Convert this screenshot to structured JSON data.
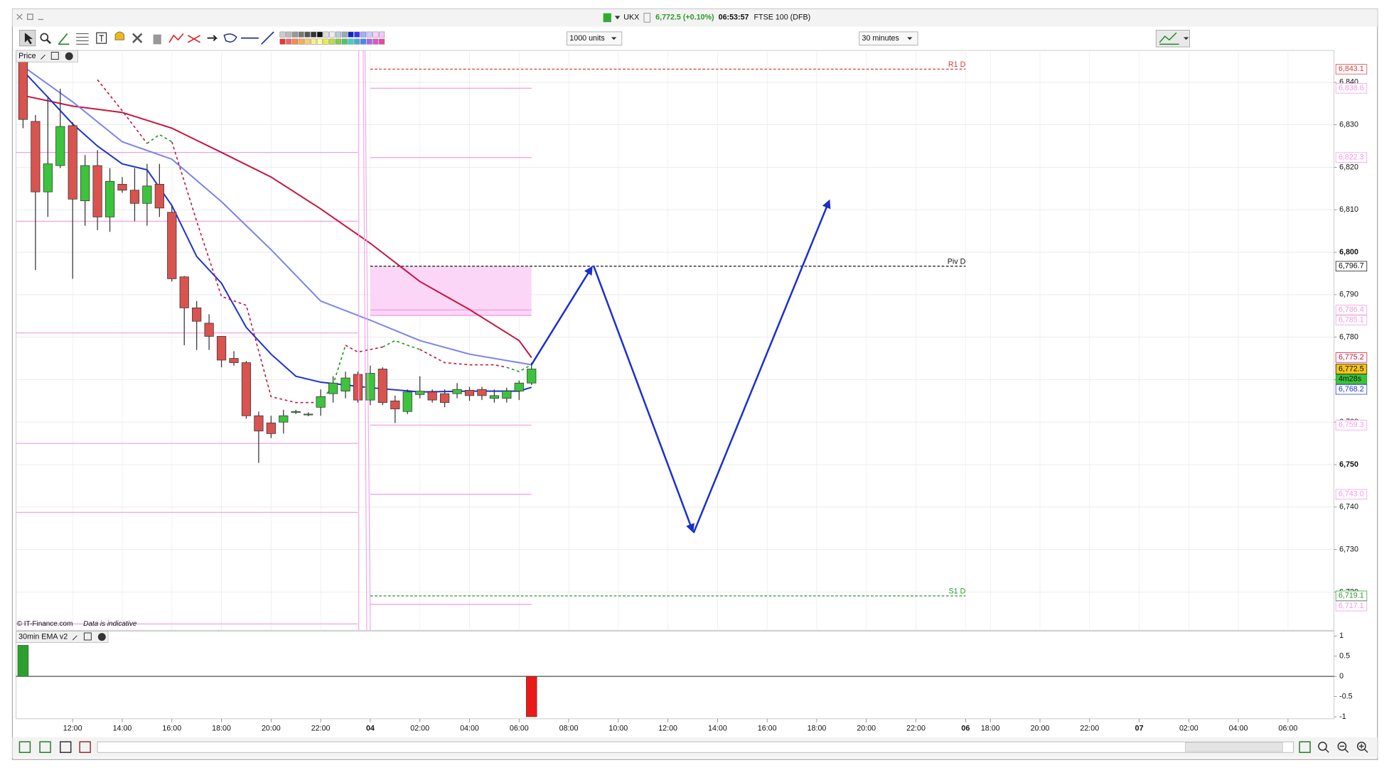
{
  "window": {
    "symbol": "UKX",
    "price": "6,772.5 (+0.10%)",
    "time": "06:53:57",
    "instrument": "FTSE 100 (DFB)"
  },
  "toolbar": {
    "size": "1000 units",
    "interval": "30 minutes"
  },
  "chart_data": [
    {
      "type": "candlestick",
      "panel_label": "Price",
      "watermark": "© IT-Finance.com",
      "disclaimer": "Data is indicative",
      "up_color": "#3cc43c",
      "down_color": "#d9534f",
      "grid": true,
      "x": [
        10,
        10.5,
        11,
        11.5,
        12,
        12.5,
        13,
        13.5,
        14,
        14.5,
        15,
        15.5,
        16,
        16.5,
        17,
        17.5,
        18,
        18.5,
        19,
        19.5,
        20,
        20.5,
        21,
        21.5,
        22,
        22.5,
        23,
        23.5,
        24,
        24.5,
        25,
        25.5,
        26,
        26.5,
        27,
        27.5,
        28,
        28.5,
        29,
        29.5,
        30,
        30.5
      ],
      "open": [
        6844.8,
        6830.8,
        6814.2,
        6820.4,
        6829.8,
        6812.1,
        6820.4,
        6808.3,
        6816,
        6814.6,
        6811.5,
        6816,
        6809.4,
        6794.2,
        6786.9,
        6783.3,
        6780.2,
        6775,
        6774,
        6761.5,
        6759.8,
        6760,
        6762.3,
        6761.7,
        6763.5,
        6766.7,
        6767.3,
        6771.25,
        6765.2,
        6772.5,
        6765,
        6762.5,
        6766.5,
        6767.1,
        6766.7,
        6766.7,
        6767.5,
        6767.7,
        6765.6,
        6765.6,
        6767.3,
        6769.2
      ],
      "high": [
        6846.9,
        6832.3,
        6836.5,
        6838.5,
        6830.6,
        6822.9,
        6824,
        6819.8,
        6817.7,
        6819.8,
        6820.8,
        6820.8,
        6811,
        6794.4,
        6788.5,
        6785.4,
        6780.2,
        6776.7,
        6774.4,
        6762.5,
        6761.5,
        6762.9,
        6762.9,
        6762.3,
        6767.7,
        6770.8,
        6771.9,
        6771.9,
        6773.3,
        6772.9,
        6766.25,
        6767.7,
        6770.8,
        6767.7,
        6767.7,
        6769.2,
        6768.3,
        6768.3,
        6767.7,
        6768.1,
        6769.8,
        6774
      ],
      "low": [
        6829.2,
        6795.8,
        6808.3,
        6819.8,
        6793.75,
        6806.25,
        6805.2,
        6804.8,
        6814,
        6807.3,
        6806.25,
        6808.3,
        6793.1,
        6778.1,
        6777,
        6777,
        6772.9,
        6773.3,
        6760.8,
        6750.4,
        6756.25,
        6757.3,
        6761.9,
        6761.4,
        6761.5,
        6764.6,
        6765.6,
        6764.6,
        6764,
        6764,
        6759.8,
        6761.9,
        6765.6,
        6764.6,
        6763.5,
        6765.6,
        6765,
        6765.2,
        6764.6,
        6764.6,
        6765.2,
        6768.75
      ],
      "close": [
        6831.25,
        6814.2,
        6820.8,
        6829.6,
        6812.5,
        6820.4,
        6808.3,
        6816.7,
        6814.6,
        6811.5,
        6815.6,
        6810.4,
        6793.75,
        6786.9,
        6783.75,
        6780.2,
        6774.6,
        6774,
        6761.5,
        6757.9,
        6757.3,
        6761.5,
        6762.5,
        6761.9,
        6766,
        6769.2,
        6770.4,
        6765.2,
        6771.5,
        6764.6,
        6763.1,
        6767.1,
        6767.3,
        6765.2,
        6764.6,
        6767.7,
        6766.25,
        6766.25,
        6766.25,
        6767.3,
        6769.2,
        6772.5
      ],
      "current_label": "6,772.5",
      "countdown": "4m28s",
      "xlim": [
        9.714,
        62.857
      ],
      "xticks": [
        {
          "value": 12,
          "label": "12:00"
        },
        {
          "value": 14,
          "label": "14:00"
        },
        {
          "value": 16,
          "label": "16:00"
        },
        {
          "value": 18,
          "label": "18:00"
        },
        {
          "value": 20,
          "label": "20:00"
        },
        {
          "value": 22,
          "label": "22:00"
        },
        {
          "value": 24,
          "label": "04"
        },
        {
          "value": 26,
          "label": "02:00"
        },
        {
          "value": 28,
          "label": "04:00"
        },
        {
          "value": 30,
          "label": "06:00"
        },
        {
          "value": 32,
          "label": "08:00"
        },
        {
          "value": 34,
          "label": "10:00"
        },
        {
          "value": 36,
          "label": "12:00"
        },
        {
          "value": 38,
          "label": "14:00"
        },
        {
          "value": 40,
          "label": "16:00"
        },
        {
          "value": 42,
          "label": "18:00"
        },
        {
          "value": 44,
          "label": "20:00"
        },
        {
          "value": 46,
          "label": "22:00"
        },
        {
          "value": 48,
          "label": "06"
        },
        {
          "value": 49,
          "label": "18:00"
        },
        {
          "value": 51,
          "label": "20:00"
        },
        {
          "value": 53,
          "label": "22:00"
        },
        {
          "value": 55,
          "label": "07"
        },
        {
          "value": 57,
          "label": "02:00"
        },
        {
          "value": 59,
          "label": "04:00"
        },
        {
          "value": 61,
          "label": "06:00"
        }
      ],
      "ylim": [
        6711,
        6847.5
      ],
      "yticks": [
        {
          "value": 6720,
          "label": "6,720"
        },
        {
          "value": 6730,
          "label": "6,730"
        },
        {
          "value": 6740,
          "label": "6,740"
        },
        {
          "value": 6750,
          "label": "6,750"
        },
        {
          "value": 6760,
          "label": "6,760"
        },
        {
          "value": 6770,
          "label": "6,770"
        },
        {
          "value": 6780,
          "label": "6,780"
        },
        {
          "value": 6790,
          "label": "6,790"
        },
        {
          "value": 6800,
          "label": "6,800"
        },
        {
          "value": 6810,
          "label": "6,810"
        },
        {
          "value": 6820,
          "label": "6,820"
        },
        {
          "value": 6830,
          "label": "6,830"
        },
        {
          "value": 6840,
          "label": "6,840"
        }
      ],
      "lines": [
        {
          "color": "#c8143c",
          "style": "solid",
          "x": [
            10,
            12,
            14,
            16,
            18,
            20,
            22,
            24,
            26,
            28,
            30,
            30.5
          ],
          "values": [
            6836.9,
            6834.4,
            6832.9,
            6829.2,
            6823.5,
            6817.7,
            6810.2,
            6802.1,
            6793.1,
            6786.5,
            6779.2,
            6775.2
          ],
          "last_label": "6,775.2"
        },
        {
          "color": "#7a82ee",
          "style": "solid",
          "x": [
            10,
            12,
            14,
            16,
            18,
            20,
            22,
            24,
            26,
            28,
            30,
            30.5
          ],
          "values": [
            6843.75,
            6835.4,
            6826,
            6821.9,
            6811.9,
            6800.6,
            6788.5,
            6784,
            6779.2,
            6776,
            6774,
            6773.5
          ]
        },
        {
          "color": "#1c34d4",
          "style": "solid",
          "x": [
            10,
            11,
            12,
            13,
            14,
            15,
            16,
            17,
            18,
            19,
            20,
            21,
            22,
            24,
            26,
            28,
            30,
            30.5
          ],
          "values": [
            6842.7,
            6836.5,
            6830.2,
            6825,
            6820.8,
            6819.4,
            6811,
            6799,
            6792.7,
            6782.3,
            6776,
            6770.8,
            6769.4,
            6768.1,
            6767.1,
            6767.3,
            6767.3,
            6768.2
          ],
          "last_label": "6,768.2"
        },
        {
          "color": "#c8143c",
          "style": "dashed",
          "x": [
            13,
            14,
            15,
            15.5,
            16,
            17,
            18,
            19,
            20,
            21,
            22,
            22.5,
            23,
            23.5,
            24,
            24.5,
            25,
            25.5,
            26,
            27,
            28,
            29,
            29.5,
            30,
            30.5
          ],
          "values": [
            6840.6,
            6833.3,
            6825.6,
            null,
            6826,
            6807.3,
            6789.6,
            6787.5,
            6766,
            6764.6,
            6764.6,
            null,
            6778.1,
            6776.5,
            6777.1,
            6777.7,
            null,
            null,
            6777.1,
            6774,
            6773.5,
            6773.5,
            6772.9,
            null,
            null
          ]
        },
        {
          "color": "#1a9a1a",
          "style": "dashed",
          "x": [
            13,
            14,
            15,
            15.5,
            16,
            17,
            18,
            19,
            20,
            21,
            22,
            22.5,
            23,
            23.5,
            24,
            24.5,
            25,
            25.5,
            26,
            27,
            28,
            29,
            29.5,
            30,
            30.5
          ],
          "values": [
            null,
            null,
            6825.6,
            6827.7,
            6826,
            null,
            null,
            null,
            null,
            null,
            6764.6,
            6768.8,
            6778.1,
            null,
            null,
            6777.7,
            6779.2,
            6778.1,
            6777.1,
            null,
            null,
            null,
            6772.9,
            6771.9,
            6773.5
          ]
        }
      ],
      "levels": [
        {
          "tag": "R1 D",
          "value": 6843.1,
          "label": "6,843.1",
          "color": "#e03a3a",
          "style": "dashed",
          "x_range": [
            24,
            48
          ]
        },
        {
          "value": 6838.6,
          "label": "6,838.6",
          "color": "#ee9be4",
          "style": "solid",
          "x_range": [
            24,
            30.5
          ]
        },
        {
          "value": 6822.3,
          "label": "6,822.3",
          "color": "#ee9be4",
          "style": "solid",
          "x_range": [
            24,
            30.5
          ]
        },
        {
          "tag": "Piv D",
          "value": 6796.7,
          "label": "6,796.7",
          "color": "#111111",
          "style": "dashed",
          "x_range": [
            24,
            48
          ]
        },
        {
          "value": 6786.4,
          "label": "6,786.4",
          "color": "#ee9be4",
          "style": "solid",
          "x_range": [
            24,
            30.5
          ]
        },
        {
          "value": 6785.1,
          "label": "6,785.1",
          "color": "#ee9be4",
          "style": "solid",
          "x_range": [
            24,
            30.5
          ]
        },
        {
          "value": 6759.3,
          "label": "6,759.3",
          "color": "#ee9be4",
          "style": "solid",
          "x_range": [
            24,
            30.5
          ]
        },
        {
          "value": 6743,
          "label": "6,743.0",
          "color": "#ee9be4",
          "style": "solid",
          "x_range": [
            24,
            30.5
          ]
        },
        {
          "tag": "S1 D",
          "value": 6719.1,
          "label": "6,719.1",
          "color": "#2a9a2a",
          "style": "dashed",
          "x_range": [
            24,
            48
          ]
        },
        {
          "value": 6717.1,
          "label": "6,717.1",
          "color": "#ee9be4",
          "style": "solid",
          "x_range": [
            24,
            30.5
          ]
        }
      ],
      "prior_levels": {
        "color": "#ee9be4",
        "x_range": [
          9.5,
          23.5
        ],
        "values": [
          6823.5,
          6807.3,
          6781,
          6755,
          6738.75,
          6712.5
        ]
      },
      "zone": {
        "color": "#fcd6f6",
        "x_range": [
          24,
          30.5
        ],
        "values": [
          6785.1,
          6796.7
        ]
      }
    },
    {
      "type": "bar",
      "panel_label": "30min EMA v2",
      "x": [
        10,
        30.5
      ],
      "values": [
        0.77,
        -1
      ],
      "colors": [
        "#2ca02c",
        "#ea1a1a"
      ],
      "xlim": [
        9.714,
        62.857
      ],
      "ylim": [
        -1.05,
        1.12
      ],
      "yticks": [
        1,
        0.5,
        0,
        -0.5,
        -1
      ]
    }
  ]
}
